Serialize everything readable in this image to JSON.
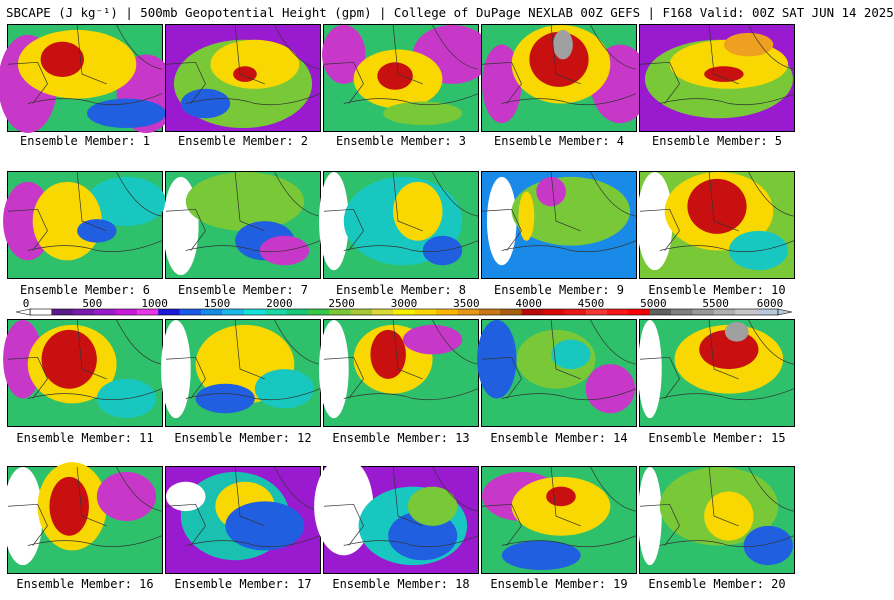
{
  "title": "SBCAPE (J kg⁻¹) | 500mb Geopotential Height (gpm) | College of DuPage NEXLAB 00Z GEFS | F168 Valid: 00Z SAT JUN 14 2025",
  "panels": [
    {
      "label": "Ensemble Member: 1"
    },
    {
      "label": "Ensemble Member: 2"
    },
    {
      "label": "Ensemble Member: 3"
    },
    {
      "label": "Ensemble Member: 4"
    },
    {
      "label": "Ensemble Member: 5"
    },
    {
      "label": "Ensemble Member: 6"
    },
    {
      "label": "Ensemble Member: 7"
    },
    {
      "label": "Ensemble Member: 8"
    },
    {
      "label": "Ensemble Member: 9"
    },
    {
      "label": "Ensemble Member: 10"
    },
    {
      "label": "Ensemble Member: 11"
    },
    {
      "label": "Ensemble Member: 12"
    },
    {
      "label": "Ensemble Member: 13"
    },
    {
      "label": "Ensemble Member: 14"
    },
    {
      "label": "Ensemble Member: 15"
    },
    {
      "label": "Ensemble Member: 16"
    },
    {
      "label": "Ensemble Member: 17"
    },
    {
      "label": "Ensemble Member: 18"
    },
    {
      "label": "Ensemble Member: 19"
    },
    {
      "label": "Ensemble Member: 20"
    }
  ],
  "colorbar": {
    "ticks": [
      "0",
      "500",
      "1000",
      "1500",
      "2000",
      "2500",
      "3000",
      "3500",
      "4000",
      "4500",
      "5000",
      "5500",
      "6000"
    ],
    "colors": [
      "#ffffff",
      "#5a1a8a",
      "#7a1aa8",
      "#9a1ad0",
      "#c81ad8",
      "#e838e8",
      "#1a1ad8",
      "#1a5ae8",
      "#1a8ae8",
      "#1ab8e8",
      "#1ae0d8",
      "#1ad8a8",
      "#1ac878",
      "#38c848",
      "#7ac838",
      "#a8c838",
      "#d8d838",
      "#f8f000",
      "#f8d800",
      "#f8b800",
      "#e89818",
      "#c87818",
      "#a86010",
      "#b80808",
      "#d80808",
      "#e81818",
      "#f83838",
      "#f81818",
      "#f80000",
      "#606060",
      "#808080",
      "#989898",
      "#b0b0b0",
      "#c8c8c8",
      "#b8c8d8"
    ]
  }
}
